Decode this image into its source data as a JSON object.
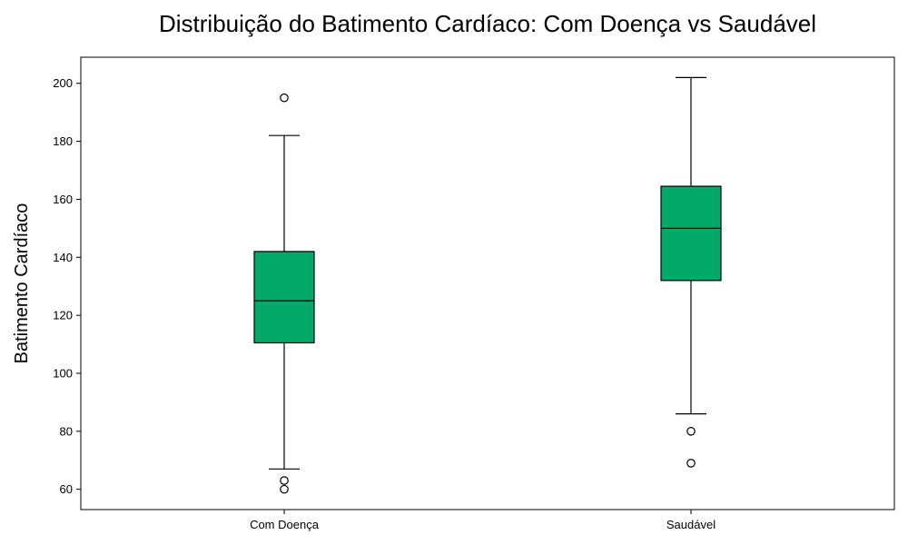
{
  "chart_data": {
    "type": "box",
    "title": "Distribuição do Batimento Cardíaco: Com Doença vs Saudável",
    "xlabel": "",
    "ylabel": "Batimento Cardíaco",
    "ylim": [
      53,
      209
    ],
    "yticks": [
      60,
      80,
      100,
      120,
      140,
      160,
      180,
      200
    ],
    "categories": [
      "Com Doença",
      "Saudável"
    ],
    "boxes": [
      {
        "category": "Com Doença",
        "whisker_low": 67,
        "q1": 110.5,
        "median": 125,
        "q3": 142,
        "whisker_high": 182,
        "outliers": [
          195,
          63,
          60
        ]
      },
      {
        "category": "Saudável",
        "whisker_low": 86,
        "q1": 132,
        "median": 150,
        "q3": 164.5,
        "whisker_high": 202,
        "outliers": [
          80,
          69
        ]
      }
    ],
    "box_color": "#03a96b",
    "line_color": "#000000",
    "grid": false,
    "legend": "none"
  }
}
